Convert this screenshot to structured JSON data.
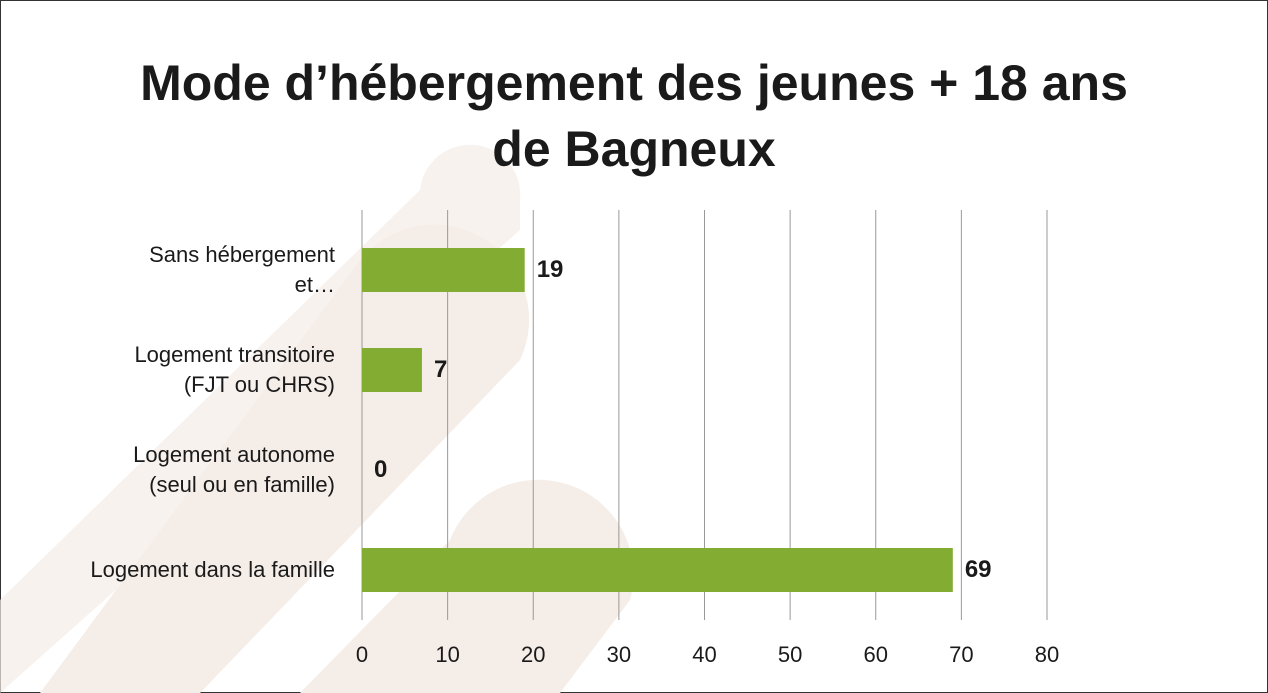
{
  "chart_data": {
    "type": "hbar",
    "title": "Mode d’hébergement des jeunes + 18 ans\nde Bagneux",
    "categories": [
      "Sans hébergement\net…",
      "Logement transitoire\n(FJT ou CHRS)",
      "Logement autonome\n(seul ou en famille)",
      "Logement dans la famille"
    ],
    "values": [
      19,
      7,
      0,
      69
    ],
    "color": "#82ad32",
    "xlim": [
      0,
      80
    ],
    "xticks": [
      0,
      10,
      20,
      30,
      40,
      50,
      60,
      70,
      80
    ],
    "grid": true
  }
}
